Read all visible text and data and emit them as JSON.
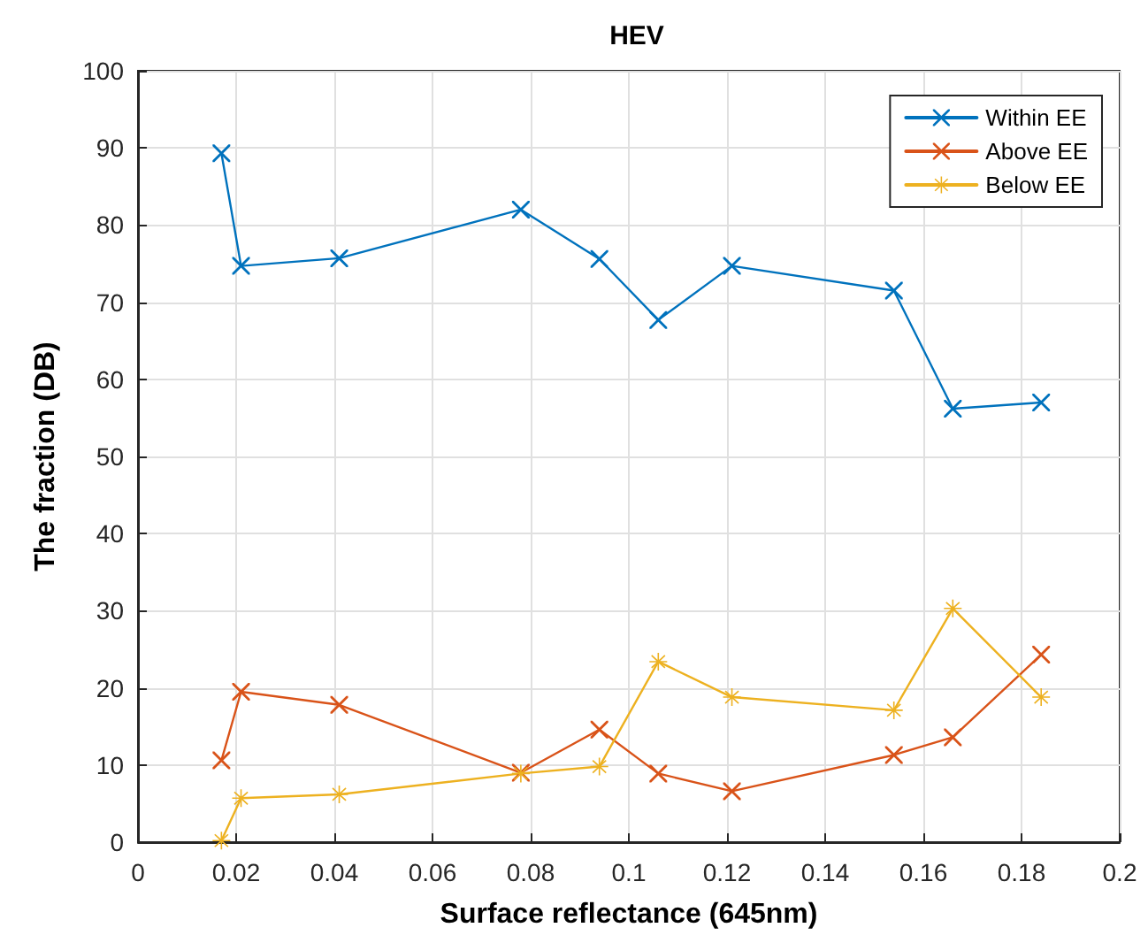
{
  "chart_data": {
    "type": "line",
    "title": "HEV",
    "xlabel": "Surface reflectance (645nm)",
    "ylabel": "The fraction (DB)",
    "x": [
      0.017,
      0.021,
      0.041,
      0.078,
      0.094,
      0.106,
      0.121,
      0.154,
      0.166,
      0.184
    ],
    "series": [
      {
        "name": "Within EE",
        "color": "#0072bd",
        "marker": "cross",
        "values": [
          89.3,
          74.7,
          75.7,
          82,
          75.6,
          67.7,
          74.7,
          71.5,
          56.2,
          57
        ]
      },
      {
        "name": "Above EE",
        "color": "#d95319",
        "marker": "cross",
        "values": [
          10.6,
          19.5,
          17.8,
          9,
          14.6,
          8.9,
          6.6,
          11.3,
          13.6,
          24.3
        ]
      },
      {
        "name": "Below EE",
        "color": "#edb120",
        "marker": "star",
        "values": [
          0.2,
          5.7,
          6.2,
          8.9,
          9.8,
          23.4,
          18.8,
          17.1,
          30.3,
          18.8
        ]
      }
    ],
    "xlim": [
      0,
      0.2
    ],
    "xticks": [
      0,
      0.02,
      0.04,
      0.06,
      0.08,
      0.1,
      0.12,
      0.14,
      0.16,
      0.18,
      0.2
    ],
    "ylim": [
      0,
      100
    ],
    "yticks": [
      0,
      10,
      20,
      30,
      40,
      50,
      60,
      70,
      80,
      90,
      100
    ],
    "grid": true,
    "legend": "top right",
    "line_style": "solid"
  }
}
